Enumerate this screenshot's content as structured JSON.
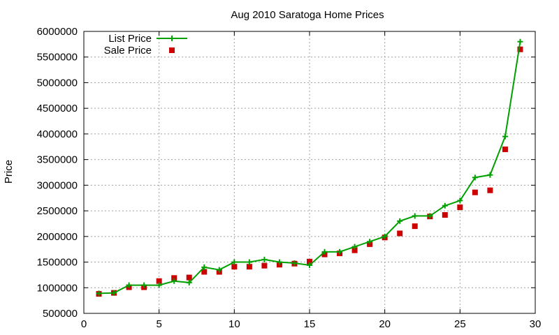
{
  "chart_data": {
    "type": "line",
    "title": "Aug 2010 Saratoga Home Prices",
    "xlabel": "",
    "ylabel": "Price",
    "xlim": [
      0,
      30
    ],
    "ylim": [
      500000,
      6000000
    ],
    "xticks": [
      0,
      5,
      10,
      15,
      20,
      25,
      30
    ],
    "yticks": [
      500000,
      1000000,
      1500000,
      2000000,
      2500000,
      3000000,
      3500000,
      4000000,
      4500000,
      5000000,
      5500000,
      6000000
    ],
    "grid": true,
    "legend_position": "top-left",
    "x": [
      1,
      2,
      3,
      4,
      5,
      6,
      7,
      8,
      9,
      10,
      11,
      12,
      13,
      14,
      15,
      16,
      17,
      18,
      19,
      20,
      21,
      22,
      23,
      24,
      25,
      26,
      27,
      28,
      29
    ],
    "series": [
      {
        "name": "List Price",
        "style": "line-plus",
        "color": "#00a000",
        "values": [
          890000,
          899000,
          1050000,
          1050000,
          1050000,
          1130000,
          1100000,
          1400000,
          1350000,
          1500000,
          1500000,
          1550000,
          1500000,
          1480000,
          1440000,
          1700000,
          1700000,
          1800000,
          1900000,
          2000000,
          2300000,
          2400000,
          2400000,
          2600000,
          2700000,
          3150000,
          3200000,
          3950000,
          5800000
        ]
      },
      {
        "name": "Sale Price",
        "style": "square",
        "color": "#cc0000",
        "values": [
          880000,
          900000,
          1010000,
          1010000,
          1130000,
          1190000,
          1200000,
          1310000,
          1310000,
          1410000,
          1410000,
          1430000,
          1450000,
          1470000,
          1510000,
          1650000,
          1670000,
          1730000,
          1850000,
          1980000,
          2060000,
          2200000,
          2390000,
          2420000,
          2570000,
          2860000,
          2900000,
          3700000,
          5650000
        ]
      }
    ]
  }
}
